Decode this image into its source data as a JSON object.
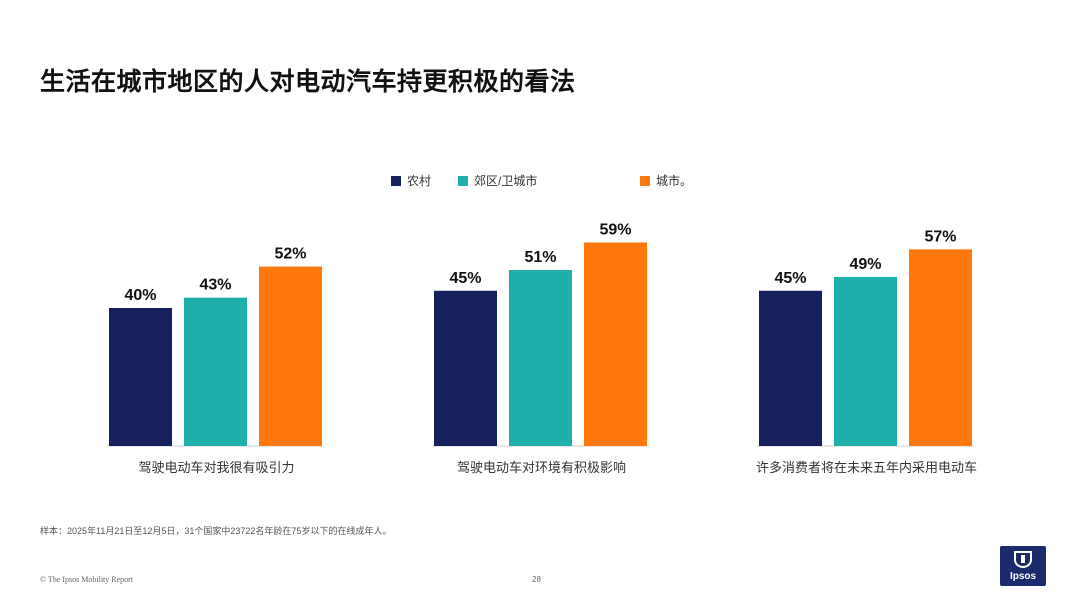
{
  "title": "生活在城市地区的人对电动汽车持更积极的看法",
  "legend": [
    {
      "label": "农村",
      "color": "#16205c"
    },
    {
      "label": "郊区/卫城市",
      "color": "#1faeaa"
    },
    {
      "label": "城市。",
      "color": "#ff780d"
    }
  ],
  "chart_data": {
    "type": "bar",
    "categories": [
      "驾驶电动车对我很有吸引力",
      "驾驶电动车对环境有积极影响",
      "许多消费者将在未来五年内采用电动车"
    ],
    "series": [
      {
        "name": "农村",
        "values": [
          40,
          45,
          45
        ]
      },
      {
        "name": "郊区/卫城市",
        "values": [
          43,
          51,
          49
        ]
      },
      {
        "name": "城市。",
        "values": [
          52,
          59,
          57
        ]
      }
    ],
    "value_suffix": "%",
    "title": "生活在城市地区的人对电动汽车持更积极的看法",
    "ylim": [
      0,
      100
    ],
    "grid": false,
    "legend_position": "top"
  },
  "source_note": "样本：2025年11月21日至12月5日，31个国家中23722名年龄在75岁以下的在线成年人。",
  "footer": "© The Ipsos Mobility Report",
  "page_number": "28",
  "logo_text": "Ipsos"
}
